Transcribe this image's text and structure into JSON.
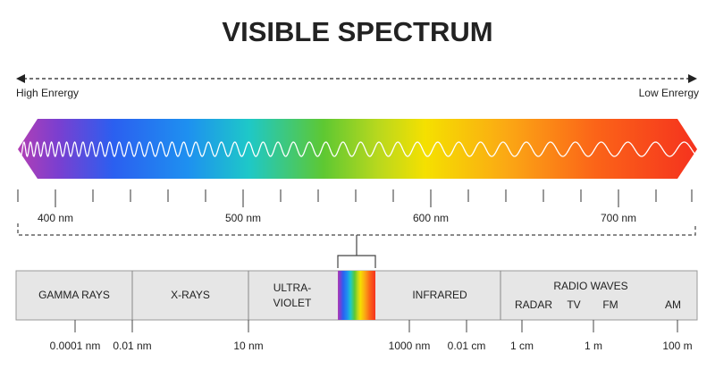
{
  "title": "VISIBLE SPECTRUM",
  "energy": {
    "high": "High Enrergy",
    "low": "Low Enrergy"
  },
  "visible_scale": [
    "400 nm",
    "500 nm",
    "600 nm",
    "700 nm"
  ],
  "bands": {
    "gamma": "GAMMA RAYS",
    "xray": "X-RAYS",
    "ultraviolet": [
      "ULTRA-",
      "VIOLET"
    ],
    "infrared": "INFRARED",
    "radio": {
      "title": "RADIO WAVES",
      "items": [
        "RADAR",
        "TV",
        "FM",
        "AM"
      ]
    }
  },
  "wavelength_scale": [
    "0.0001 nm",
    "0.01 nm",
    "10 nm",
    "1000 nm",
    "0.01 cm",
    "1 cm",
    "1 m",
    "100 m"
  ]
}
